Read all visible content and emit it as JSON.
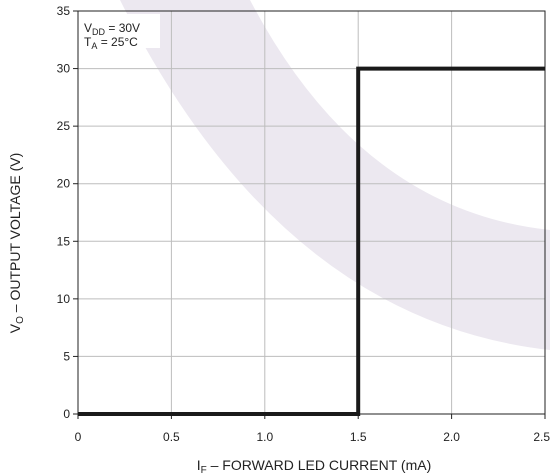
{
  "chart_data": {
    "type": "line",
    "xlabel": {
      "main": "I",
      "sub": "F",
      "rest": " – FORWARD LED CURRENT (mA)"
    },
    "ylabel": {
      "main": "V",
      "sub": "O",
      "rest": " – OUTPUT VOLTAGE (V)"
    },
    "xlim": [
      0,
      2.5
    ],
    "ylim": [
      0,
      35
    ],
    "x_ticks": [
      "0",
      "0.5",
      "1.0",
      "1.5",
      "2.0",
      "2.5"
    ],
    "y_ticks": [
      "0",
      "5",
      "10",
      "15",
      "20",
      "25",
      "30",
      "35"
    ],
    "grid": true,
    "series": [
      {
        "x": [
          0,
          1.5,
          1.5,
          2.5
        ],
        "y": [
          0,
          0,
          30,
          30
        ]
      }
    ],
    "annotations": [
      {
        "main": "V",
        "sub": "DD",
        "rest": " = 30V"
      },
      {
        "main": "T",
        "sub": "A",
        "rest": " = 25°C"
      }
    ],
    "colors": {
      "line": "#1a1a1a",
      "grid": "#bdbdbd",
      "watermark": "#ece8f0"
    }
  }
}
